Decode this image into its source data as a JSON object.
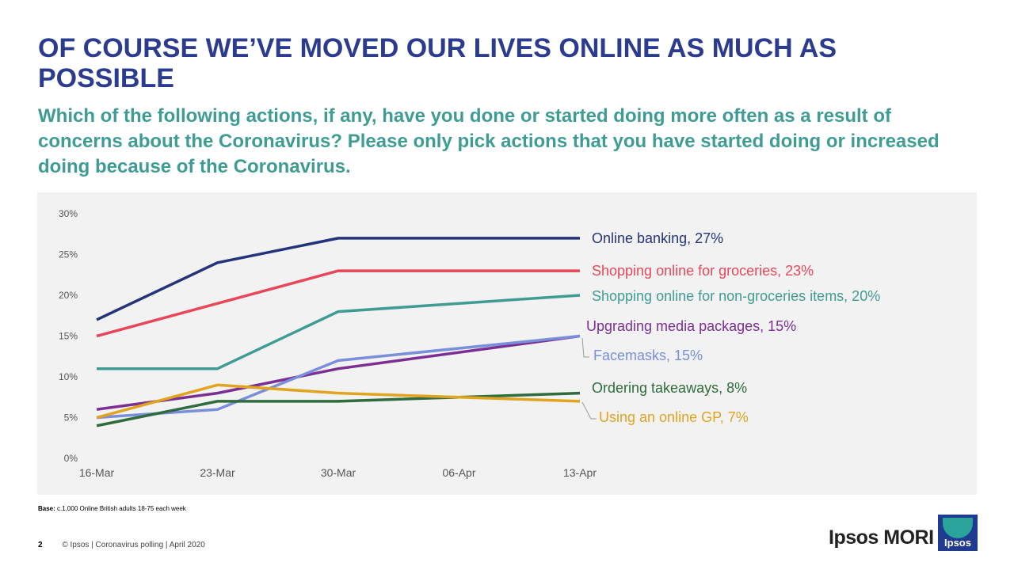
{
  "slide": {
    "title": "OF COURSE WE’VE MOVED OUR LIVES ONLINE AS MUCH AS POSSIBLE",
    "question": "Which of the following actions, if any, have you done or started doing more often as a result of concerns about the Coronavirus? Please only pick actions that you have started doing or increased doing because of the Coronavirus.",
    "base_label": "Base:",
    "base_text": "c.1,000 Online British adults 18-75 each week",
    "page_number": "2",
    "footer_text": "© Ipsos | Coronavirus polling | April 2020",
    "brand_text": "Ipsos MORI",
    "logo_text": "Ipsos"
  },
  "chart_data": {
    "type": "line",
    "title": "",
    "xlabel": "",
    "ylabel": "",
    "x": [
      "16-Mar",
      "23-Mar",
      "30-Mar",
      "06-Apr",
      "13-Apr"
    ],
    "ylim": [
      0,
      30
    ],
    "yticks": [
      0,
      5,
      10,
      15,
      20,
      25,
      30
    ],
    "y_tick_format": "percent",
    "grid": false,
    "legend": "end-of-line labels",
    "series": [
      {
        "name": "Online banking",
        "end_label": "Online banking, 27%",
        "color": "#25347a",
        "points": [
          [
            0,
            17
          ],
          [
            1,
            24
          ],
          [
            2,
            27
          ],
          [
            4,
            27
          ]
        ]
      },
      {
        "name": "Shopping online for groceries",
        "end_label": "Shopping online for groceries, 23%",
        "color": "#e8475a",
        "points": [
          [
            0,
            15
          ],
          [
            1,
            19
          ],
          [
            2,
            23
          ],
          [
            4,
            23
          ]
        ]
      },
      {
        "name": "Shopping online for non-groceries items",
        "end_label": "Shopping online for non-groceries items, 20%",
        "color": "#3f9c95",
        "points": [
          [
            0,
            11
          ],
          [
            1,
            11
          ],
          [
            2,
            18
          ],
          [
            4,
            20
          ]
        ]
      },
      {
        "name": "Upgrading media packages",
        "end_label": "Upgrading media packages, 15%",
        "color": "#7b2f93",
        "points": [
          [
            0,
            6
          ],
          [
            1,
            8
          ],
          [
            2,
            11
          ],
          [
            4,
            15
          ]
        ]
      },
      {
        "name": "Facemasks",
        "end_label": "Facemasks, 15%",
        "color": "#7a8fd9",
        "points": [
          [
            0,
            5
          ],
          [
            1,
            6
          ],
          [
            2,
            12
          ],
          [
            4,
            15
          ]
        ]
      },
      {
        "name": "Ordering takeaways",
        "end_label": "Ordering takeaways, 8%",
        "color": "#2f6b3c",
        "points": [
          [
            0,
            4
          ],
          [
            1,
            7
          ],
          [
            2,
            7
          ],
          [
            4,
            8
          ]
        ]
      },
      {
        "name": "Using an online GP",
        "end_label": "Using an online GP, 7%",
        "color": "#e0a420",
        "points": [
          [
            0,
            5
          ],
          [
            1,
            9
          ],
          [
            2,
            8
          ],
          [
            4,
            7
          ]
        ]
      }
    ]
  }
}
